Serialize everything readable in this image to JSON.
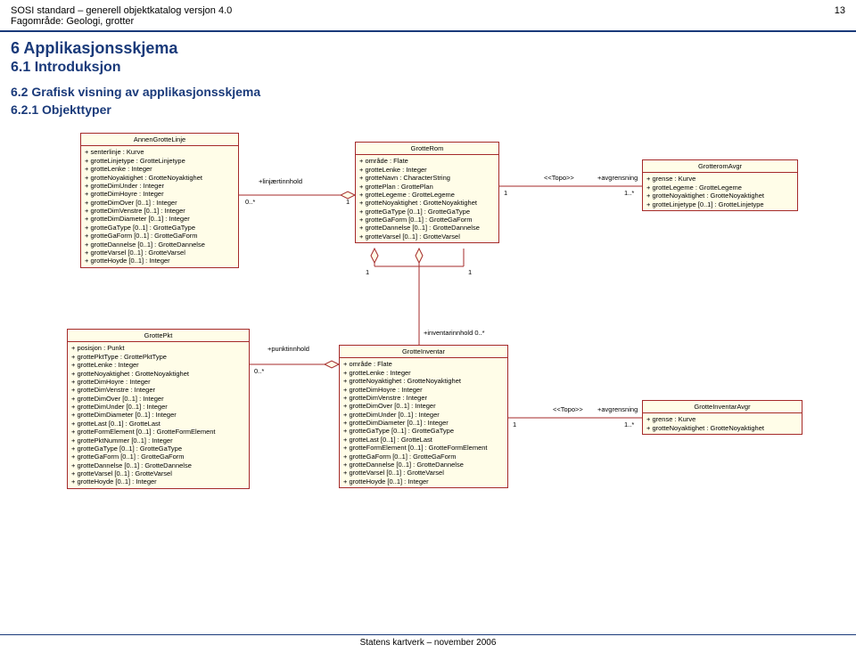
{
  "header": {
    "title_left": "SOSI standard – generell objektkatalog versjon 4.0",
    "page_num": "13",
    "subtitle": "Fagområde: Geologi, grotter"
  },
  "sections": {
    "h1": "6   Applikasjonsskjema",
    "h2": "6.1   Introduksjon",
    "h3a": "6.2   Grafisk visning av applikasjonsskjema",
    "h3b": "6.2.1   Objekttyper"
  },
  "footer": "Statens kartverk – november 2006",
  "colors": {
    "box_fill": "#fffde8",
    "box_border": "#a52a2a",
    "heading": "#1a3a7a",
    "line": "#a52a2a"
  },
  "boxes": {
    "annenGrotteLinje": {
      "title": "AnnenGrotteLinje",
      "attrs": [
        "+ senterlinje : Kurve",
        "+ grotteLinjetype : GrotteLinjetype",
        "+ grotteLenke : Integer",
        "+ grotteNoyaktighet : GrotteNoyaktighet",
        "+ grotteDimUnder : Integer",
        "+ grotteDimHoyre : Integer",
        "+ grotteDimOver [0..1] : Integer",
        "+ grotteDimVenstre [0..1] : Integer",
        "+ grotteDimDiameter [0..1] : Integer",
        "+ grotteGaType [0..1] : GrotteGaType",
        "+ grotteGaForm [0..1] : GrotteGaForm",
        "+ grotteDannelse [0..1] : GrotteDannelse",
        "+ grotteVarsel [0..1] : GrotteVarsel",
        "+ grotteHoyde [0..1] : Integer"
      ]
    },
    "grotteRom": {
      "title": "GrotteRom",
      "attrs": [
        "+ område : Flate",
        "+ grotteLenke : Integer",
        "+ grotteNavn : CharacterString",
        "+ grottePlan : GrottePlan",
        "+ grotteLegeme : GrotteLegeme",
        "+ grotteNoyaktighet : GrotteNoyaktighet",
        "+ grotteGaType [0..1] : GrotteGaType",
        "+ grotteGaForm [0..1] : GrotteGaForm",
        "+ grotteDannelse [0..1] : GrotteDannelse",
        "+ grotteVarsel [0..1] : GrotteVarsel"
      ]
    },
    "grotteromAvgr": {
      "title": "GrotteromAvgr",
      "attrs": [
        "+ grense : Kurve",
        "+ grotteLegeme : GrotteLegeme",
        "+ grotteNoyaktighet : GrotteNoyaktighet",
        "+ grotteLinjetype [0..1] : GrotteLinjetype"
      ]
    },
    "grottePkt": {
      "title": "GrottePkt",
      "attrs": [
        "+ posisjon : Punkt",
        "+ grottePktType : GrottePktType",
        "+ grotteLenke : Integer",
        "+ grotteNoyaktighet : GrotteNoyaktighet",
        "+ grotteDimHoyre : Integer",
        "+ grotteDimVenstre : Integer",
        "+ grotteDimOver [0..1] : Integer",
        "+ grotteDimUnder [0..1] : Integer",
        "+ grotteDimDiameter [0..1] : Integer",
        "+ grotteLast [0..1] : GrotteLast",
        "+ grotteFormElement [0..1] : GrotteFormElement",
        "+ grottePktNummer [0..1] : Integer",
        "+ grotteGaType [0..1] : GrotteGaType",
        "+ grotteGaForm [0..1] : GrotteGaForm",
        "+ grotteDannelse [0..1] : GrotteDannelse",
        "+ grotteVarsel [0..1] : GrotteVarsel",
        "+ grotteHoyde [0..1] : Integer"
      ]
    },
    "grotteInventar": {
      "title": "GrotteInventar",
      "attrs": [
        "+ område : Flate",
        "+ grotteLenke : Integer",
        "+ grotteNoyaktighet : GrotteNoyaktighet",
        "+ grotteDimHoyre : Integer",
        "+ grotteDimVenstre : Integer",
        "+ grotteDimOver [0..1] : Integer",
        "+ grotteDimUnder [0..1] : Integer",
        "+ grotteDimDiameter [0..1] : Integer",
        "+ grotteGaType [0..1] : GrotteGaType",
        "+ grotteLast [0..1] : GrotteLast",
        "+ grotteFormElement [0..1] : GrotteFormElement",
        "+ grotteGaForm [0..1] : GrotteGaForm",
        "+ grotteDannelse [0..1] : GrotteDannelse",
        "+ grotteVarsel [0..1] : GrotteVarsel",
        "+ grotteHoyde [0..1] : Integer"
      ]
    },
    "grotteInventarAvgr": {
      "title": "GrotteInventarAvgr",
      "attrs": [
        "+ grense : Kurve",
        "+ grotteNoyaktighet : GrotteNoyaktighet"
      ]
    }
  },
  "labels": {
    "linjaerInnhold": "+linjærtinnhold",
    "punktInnhold": "+punktinnhold",
    "inventarInnhold": "+inventarinnhold  0..*",
    "topo": "<<Topo>>",
    "avgrensning": "+avgrensning",
    "zero_star": "0..*",
    "one": "1",
    "one_star": "1..*"
  }
}
